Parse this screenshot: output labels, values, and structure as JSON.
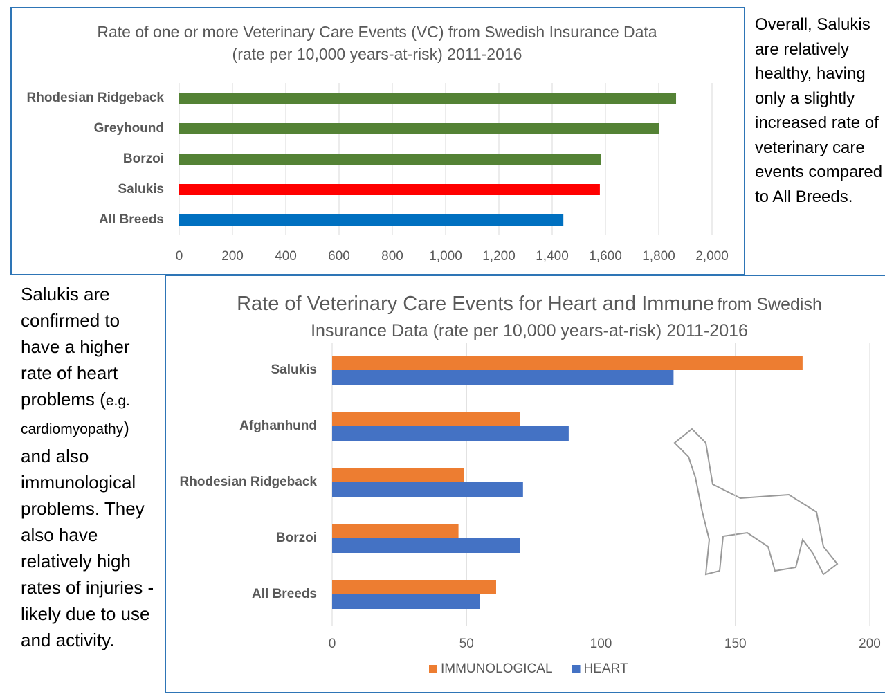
{
  "chart_data": [
    {
      "type": "bar",
      "horizontal": true,
      "title": "Rate of one or more Veterinary Care Events (VC) from Swedish Insurance Data (rate per 10,000 years-at-risk) 2011-2016",
      "categories": [
        "Rhodesian Ridgeback",
        "Greyhound",
        "Borzoi",
        "Salukis",
        "All Breeds"
      ],
      "values": [
        1865,
        1800,
        1582,
        1579,
        1442
      ],
      "colors": [
        "#548235",
        "#548235",
        "#548235",
        "#ff0000",
        "#0070c0"
      ],
      "xlim": [
        0,
        2000
      ],
      "xticks": [
        0,
        200,
        400,
        600,
        800,
        {
          "value": 1000,
          "label": "1,000"
        },
        {
          "value": 1200,
          "label": "1,200"
        },
        {
          "value": 1400,
          "label": "1,400"
        },
        {
          "value": 1600,
          "label": "1,600"
        },
        {
          "value": 1800,
          "label": "1,800"
        },
        {
          "value": 2000,
          "label": "2,000"
        }
      ],
      "grid": true
    },
    {
      "type": "bar",
      "horizontal": true,
      "title": "Rate of Veterinary Care Events for Heart and Immune",
      "subtitle": "from Swedish Insurance Data (rate per 10,000 years-at-risk) 2011-2016",
      "categories": [
        "Salukis",
        "Afghanhund",
        "Rhodesian Ridgeback",
        "Borzoi",
        "All Breeds"
      ],
      "series": [
        {
          "name": "IMMUNOLOGICAL",
          "color": "#ed7d31",
          "values": [
            175,
            70,
            49,
            47,
            61
          ]
        },
        {
          "name": "HEART",
          "color": "#4472c4",
          "values": [
            127,
            88,
            71,
            70,
            55
          ]
        }
      ],
      "xlim": [
        0,
        200
      ],
      "xticks": [
        0,
        50,
        100,
        150,
        200
      ],
      "grid": true,
      "legend": "bottom"
    }
  ],
  "right_note": "Overall, Salukis are relatively healthy, having only a slightly increased rate of veterinary care events compared to All Breeds.",
  "left_note": [
    "Salukis are confirmed to have a higher rate of heart problems (",
    "e.g. cardiomyopathy",
    ") and also immunological problems. They also have relatively high rates of injuries - likely due to use and activity."
  ]
}
